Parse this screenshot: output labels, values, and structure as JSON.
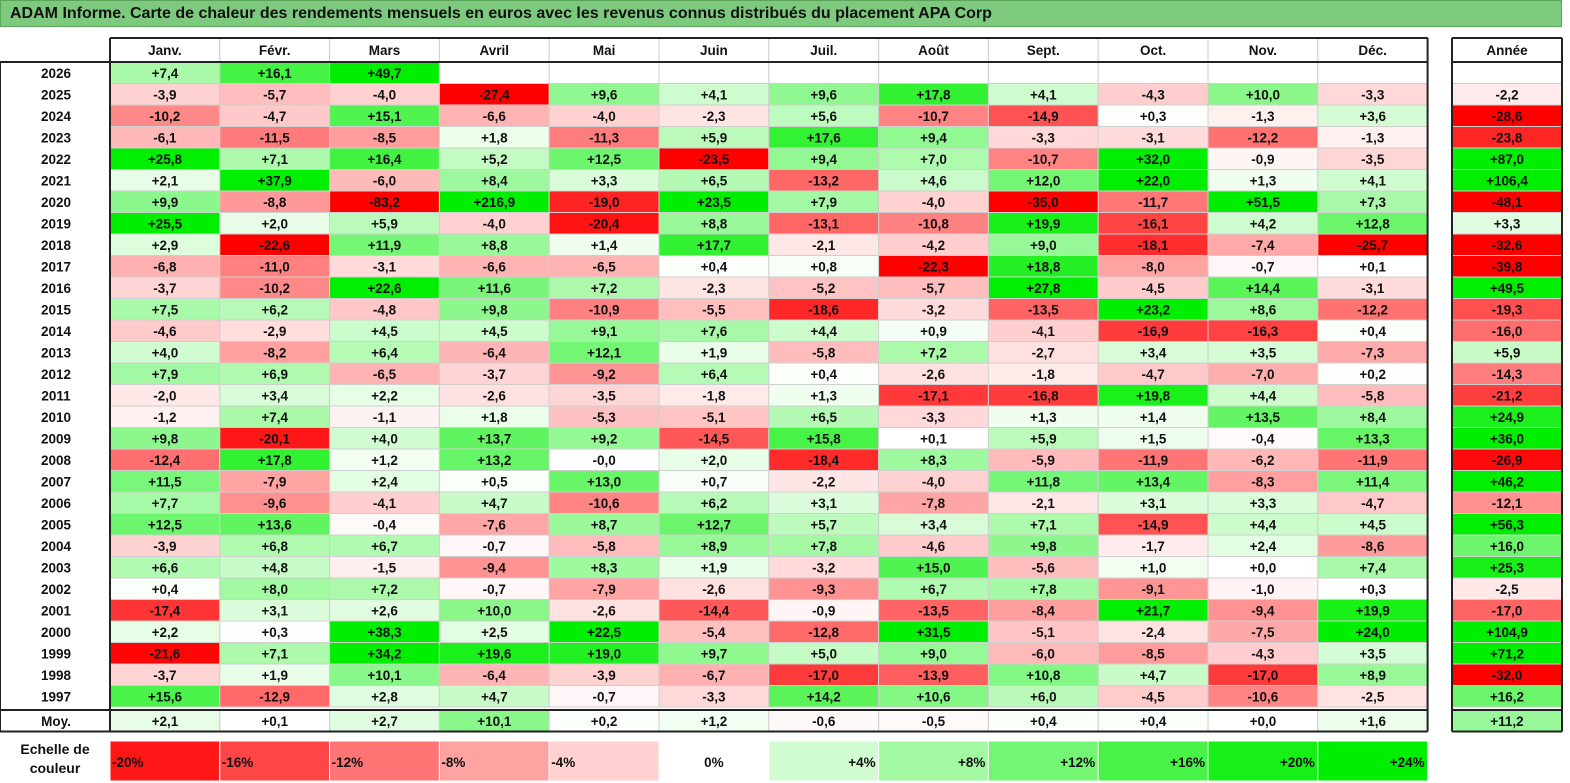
{
  "title": "ADAM Informe. Carte de chaleur des rendements mensuels en euros avec les revenus connus distribués du placement APA Corp",
  "chart_data": {
    "type": "heatmap",
    "months": [
      "Janv.",
      "Févr.",
      "Mars",
      "Avril",
      "Mai",
      "Juin",
      "Juil.",
      "Août",
      "Sept.",
      "Oct.",
      "Nov.",
      "Déc."
    ],
    "year_header": "Année",
    "rows": [
      {
        "label": "2026",
        "values": [
          "+7,4",
          "+16,1",
          "+49,7",
          "",
          "",
          "",
          "",
          "",
          "",
          "",
          "",
          ""
        ],
        "year": ""
      },
      {
        "label": "2025",
        "values": [
          "-3,9",
          "-5,7",
          "-4,0",
          "-27,4",
          "+9,6",
          "+4,1",
          "+9,6",
          "+17,8",
          "+4,1",
          "-4,3",
          "+10,0",
          "-3,3"
        ],
        "year": "-2,2"
      },
      {
        "label": "2024",
        "values": [
          "-10,2",
          "-4,7",
          "+15,1",
          "-6,6",
          "-4,0",
          "-2,3",
          "+5,6",
          "-10,7",
          "-14,9",
          "+0,3",
          "-1,3",
          "+3,6"
        ],
        "year": "-28,6"
      },
      {
        "label": "2023",
        "values": [
          "-6,1",
          "-11,5",
          "-8,5",
          "+1,8",
          "-11,3",
          "+5,9",
          "+17,6",
          "+9,4",
          "-3,3",
          "-3,1",
          "-12,2",
          "-1,3"
        ],
        "year": "-23,8"
      },
      {
        "label": "2022",
        "values": [
          "+25,8",
          "+7,1",
          "+16,4",
          "+5,2",
          "+12,5",
          "-23,5",
          "+9,4",
          "+7,0",
          "-10,7",
          "+32,0",
          "-0,9",
          "-3,5"
        ],
        "year": "+87,0"
      },
      {
        "label": "2021",
        "values": [
          "+2,1",
          "+37,9",
          "-6,0",
          "+8,4",
          "+3,3",
          "+6,5",
          "-13,2",
          "+4,6",
          "+12,0",
          "+22,0",
          "+1,3",
          "+4,1"
        ],
        "year": "+106,4"
      },
      {
        "label": "2020",
        "values": [
          "+9,9",
          "-8,8",
          "-83,2",
          "+216,9",
          "-19,0",
          "+23,5",
          "+7,9",
          "-4,0",
          "-35,0",
          "-11,7",
          "+51,5",
          "+7,3"
        ],
        "year": "-48,1"
      },
      {
        "label": "2019",
        "values": [
          "+25,5",
          "+2,0",
          "+5,9",
          "-4,0",
          "-20,4",
          "+8,8",
          "-13,1",
          "-10,8",
          "+19,9",
          "-16,1",
          "+4,2",
          "+12,8"
        ],
        "year": "+3,3"
      },
      {
        "label": "2018",
        "values": [
          "+2,9",
          "-22,6",
          "+11,9",
          "+8,8",
          "+1,4",
          "+17,7",
          "-2,1",
          "-4,2",
          "+9,0",
          "-18,1",
          "-7,4",
          "-25,7"
        ],
        "year": "-32,6"
      },
      {
        "label": "2017",
        "values": [
          "-6,8",
          "-11,0",
          "-3,1",
          "-6,6",
          "-6,5",
          "+0,4",
          "+0,8",
          "-22,3",
          "+18,8",
          "-8,0",
          "-0,7",
          "+0,1"
        ],
        "year": "-39,8"
      },
      {
        "label": "2016",
        "values": [
          "-3,7",
          "-10,2",
          "+22,6",
          "+11,6",
          "+7,2",
          "-2,3",
          "-5,2",
          "-5,7",
          "+27,8",
          "-4,5",
          "+14,4",
          "-3,1"
        ],
        "year": "+49,5"
      },
      {
        "label": "2015",
        "values": [
          "+7,5",
          "+6,2",
          "-4,8",
          "+9,8",
          "-10,9",
          "-5,5",
          "-18,6",
          "-3,2",
          "-13,5",
          "+23,2",
          "+8,6",
          "-12,2"
        ],
        "year": "-19,3"
      },
      {
        "label": "2014",
        "values": [
          "-4,6",
          "-2,9",
          "+4,5",
          "+4,5",
          "+9,1",
          "+7,6",
          "+4,4",
          "+0,9",
          "-4,1",
          "-16,9",
          "-16,3",
          "+0,4"
        ],
        "year": "-16,0"
      },
      {
        "label": "2013",
        "values": [
          "+4,0",
          "-8,2",
          "+6,4",
          "-6,4",
          "+12,1",
          "+1,9",
          "-5,8",
          "+7,2",
          "-2,7",
          "+3,4",
          "+3,5",
          "-7,3"
        ],
        "year": "+5,9"
      },
      {
        "label": "2012",
        "values": [
          "+7,9",
          "+6,9",
          "-6,5",
          "-3,7",
          "-9,2",
          "+6,4",
          "+0,4",
          "-2,6",
          "-1,8",
          "-4,7",
          "-7,0",
          "+0,2"
        ],
        "year": "-14,3"
      },
      {
        "label": "2011",
        "values": [
          "-2,0",
          "+3,4",
          "+2,2",
          "-2,6",
          "-3,5",
          "-1,8",
          "+1,3",
          "-17,1",
          "-16,8",
          "+19,8",
          "+4,4",
          "-5,8"
        ],
        "year": "-21,2"
      },
      {
        "label": "2010",
        "values": [
          "-1,2",
          "+7,4",
          "-1,1",
          "+1,8",
          "-5,3",
          "-5,1",
          "+6,5",
          "-3,3",
          "+1,3",
          "+1,4",
          "+13,5",
          "+8,4"
        ],
        "year": "+24,9"
      },
      {
        "label": "2009",
        "values": [
          "+9,8",
          "-20,1",
          "+4,0",
          "+13,7",
          "+9,2",
          "-14,5",
          "+15,8",
          "+0,1",
          "+5,9",
          "+1,5",
          "-0,4",
          "+13,3"
        ],
        "year": "+36,0"
      },
      {
        "label": "2008",
        "values": [
          "-12,4",
          "+17,8",
          "+1,2",
          "+13,2",
          "-0,0",
          "+2,0",
          "-18,4",
          "+8,3",
          "-5,9",
          "-11,9",
          "-6,2",
          "-11,9"
        ],
        "year": "-26,9"
      },
      {
        "label": "2007",
        "values": [
          "+11,5",
          "-7,9",
          "+2,4",
          "+0,5",
          "+13,0",
          "+0,7",
          "-2,2",
          "-4,0",
          "+11,8",
          "+13,4",
          "-8,3",
          "+11,4"
        ],
        "year": "+46,2"
      },
      {
        "label": "2006",
        "values": [
          "+7,7",
          "-9,6",
          "-4,1",
          "+4,7",
          "-10,6",
          "+6,2",
          "+3,1",
          "-7,8",
          "-2,1",
          "+3,1",
          "+3,3",
          "-4,7"
        ],
        "year": "-12,1"
      },
      {
        "label": "2005",
        "values": [
          "+12,5",
          "+13,6",
          "-0,4",
          "-7,6",
          "+8,7",
          "+12,7",
          "+5,7",
          "+3,4",
          "+7,1",
          "-14,9",
          "+4,4",
          "+4,5"
        ],
        "year": "+56,3"
      },
      {
        "label": "2004",
        "values": [
          "-3,9",
          "+6,8",
          "+6,7",
          "-0,7",
          "-5,8",
          "+8,9",
          "+7,8",
          "-4,6",
          "+9,8",
          "-1,7",
          "+2,4",
          "-8,6"
        ],
        "year": "+16,0"
      },
      {
        "label": "2003",
        "values": [
          "+6,6",
          "+4,8",
          "-1,5",
          "-9,4",
          "+8,3",
          "+1,9",
          "-3,2",
          "+15,0",
          "-5,6",
          "+1,0",
          "+0,0",
          "+7,4"
        ],
        "year": "+25,3"
      },
      {
        "label": "2002",
        "values": [
          "+0,4",
          "+8,0",
          "+7,2",
          "-0,7",
          "-7,9",
          "-2,6",
          "-9,3",
          "+6,7",
          "+7,8",
          "-9,1",
          "-1,0",
          "+0,3"
        ],
        "year": "-2,5"
      },
      {
        "label": "2001",
        "values": [
          "-17,4",
          "+3,1",
          "+2,6",
          "+10,0",
          "-2,6",
          "-14,4",
          "-0,9",
          "-13,5",
          "-8,4",
          "+21,7",
          "-9,4",
          "+19,9"
        ],
        "year": "-17,0"
      },
      {
        "label": "2000",
        "values": [
          "+2,2",
          "+0,3",
          "+38,3",
          "+2,5",
          "+22,5",
          "-5,4",
          "-12,8",
          "+31,5",
          "-5,1",
          "-2,4",
          "-7,5",
          "+24,0"
        ],
        "year": "+104,9"
      },
      {
        "label": "1999",
        "values": [
          "-21,6",
          "+7,1",
          "+34,2",
          "+19,6",
          "+19,0",
          "+9,7",
          "+5,0",
          "+9,0",
          "-6,0",
          "-8,5",
          "-4,3",
          "+3,5"
        ],
        "year": "+71,2"
      },
      {
        "label": "1998",
        "values": [
          "-3,7",
          "+1,9",
          "+10,1",
          "-6,4",
          "-3,9",
          "-6,7",
          "-17,0",
          "-13,9",
          "+10,8",
          "+4,7",
          "-17,0",
          "+8,9"
        ],
        "year": "-32,0"
      },
      {
        "label": "1997",
        "values": [
          "+15,6",
          "-12,9",
          "+2,8",
          "+4,7",
          "-0,7",
          "-3,3",
          "+14,2",
          "+10,6",
          "+6,0",
          "-4,5",
          "-10,6",
          "-2,5"
        ],
        "year": "+16,2"
      }
    ],
    "average": {
      "label": "Moy.",
      "values": [
        "+2,1",
        "+0,1",
        "+2,7",
        "+10,1",
        "+0,2",
        "+1,2",
        "-0,6",
        "-0,5",
        "+0,4",
        "+0,4",
        "+0,0",
        "+1,6"
      ],
      "year": "+11,2"
    },
    "scale_label": "Echelle de couleur",
    "scale": [
      "-20%",
      "-16%",
      "-12%",
      "-8%",
      "-4%",
      "0%",
      "+4%",
      "+8%",
      "+12%",
      "+16%",
      "+20%",
      "+24%"
    ],
    "colors": {
      "negative": "#ff0000",
      "neutral": "#ffffff",
      "positive": "#00ee00",
      "title_bg": "#7dc97d"
    }
  }
}
